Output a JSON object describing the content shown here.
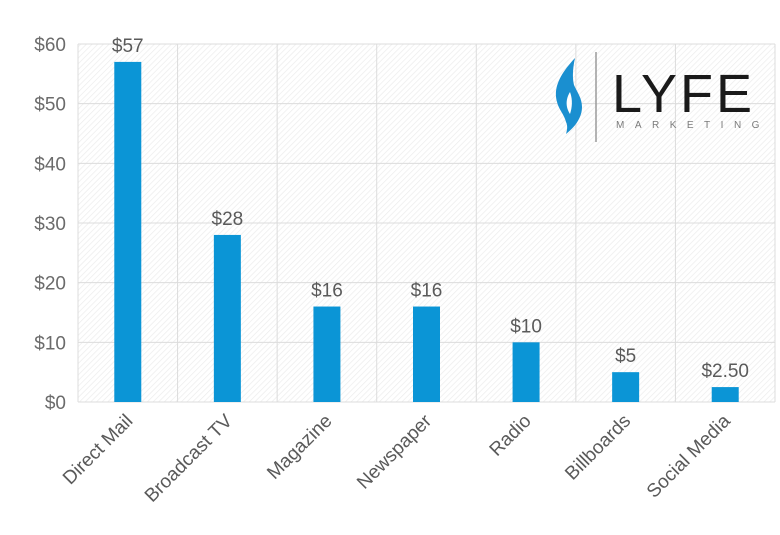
{
  "colors": {
    "bar": "#0b95d6",
    "grid": "#dcdcdc",
    "logo_flame": "#1a8fd0"
  },
  "chart_data": {
    "type": "bar",
    "categories": [
      "Direct Mail",
      "Broadcast TV",
      "Magazine",
      "Newspaper",
      "Radio",
      "Billboards",
      "Social Media"
    ],
    "values": [
      57,
      28,
      16,
      16,
      10,
      5,
      2.5
    ],
    "data_labels": [
      "$57",
      "$28",
      "$16",
      "$16",
      "$10",
      "$5",
      "$2.50"
    ],
    "y_ticks": [
      0,
      10,
      20,
      30,
      40,
      50,
      60
    ],
    "y_tick_labels": [
      "$0",
      "$10",
      "$20",
      "$30",
      "$40",
      "$50",
      "$60"
    ],
    "ylim": [
      0,
      60
    ],
    "grid": true,
    "legend": "none"
  },
  "logo": {
    "name": "LYFE",
    "tagline": "MARKETING",
    "icon": "flame-icon"
  }
}
